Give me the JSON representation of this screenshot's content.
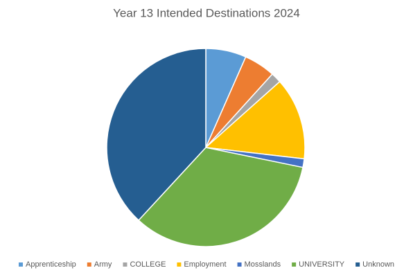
{
  "chart_data": {
    "type": "pie",
    "title": "Year 13 Intended Destinations 2024",
    "categories": [
      "Apprenticeship",
      "Army",
      "COLLEGE",
      "Employment",
      "Mosslands",
      "UNIVERSITY",
      "Unknown"
    ],
    "values": [
      6.6,
      5.1,
      1.7,
      13.4,
      1.4,
      33.6,
      38.1
    ],
    "colors": [
      "#5b9bd5",
      "#ed7d31",
      "#a5a5a5",
      "#ffc000",
      "#4472c4",
      "#70ad47",
      "#255e91"
    ],
    "legend": "bottom"
  }
}
